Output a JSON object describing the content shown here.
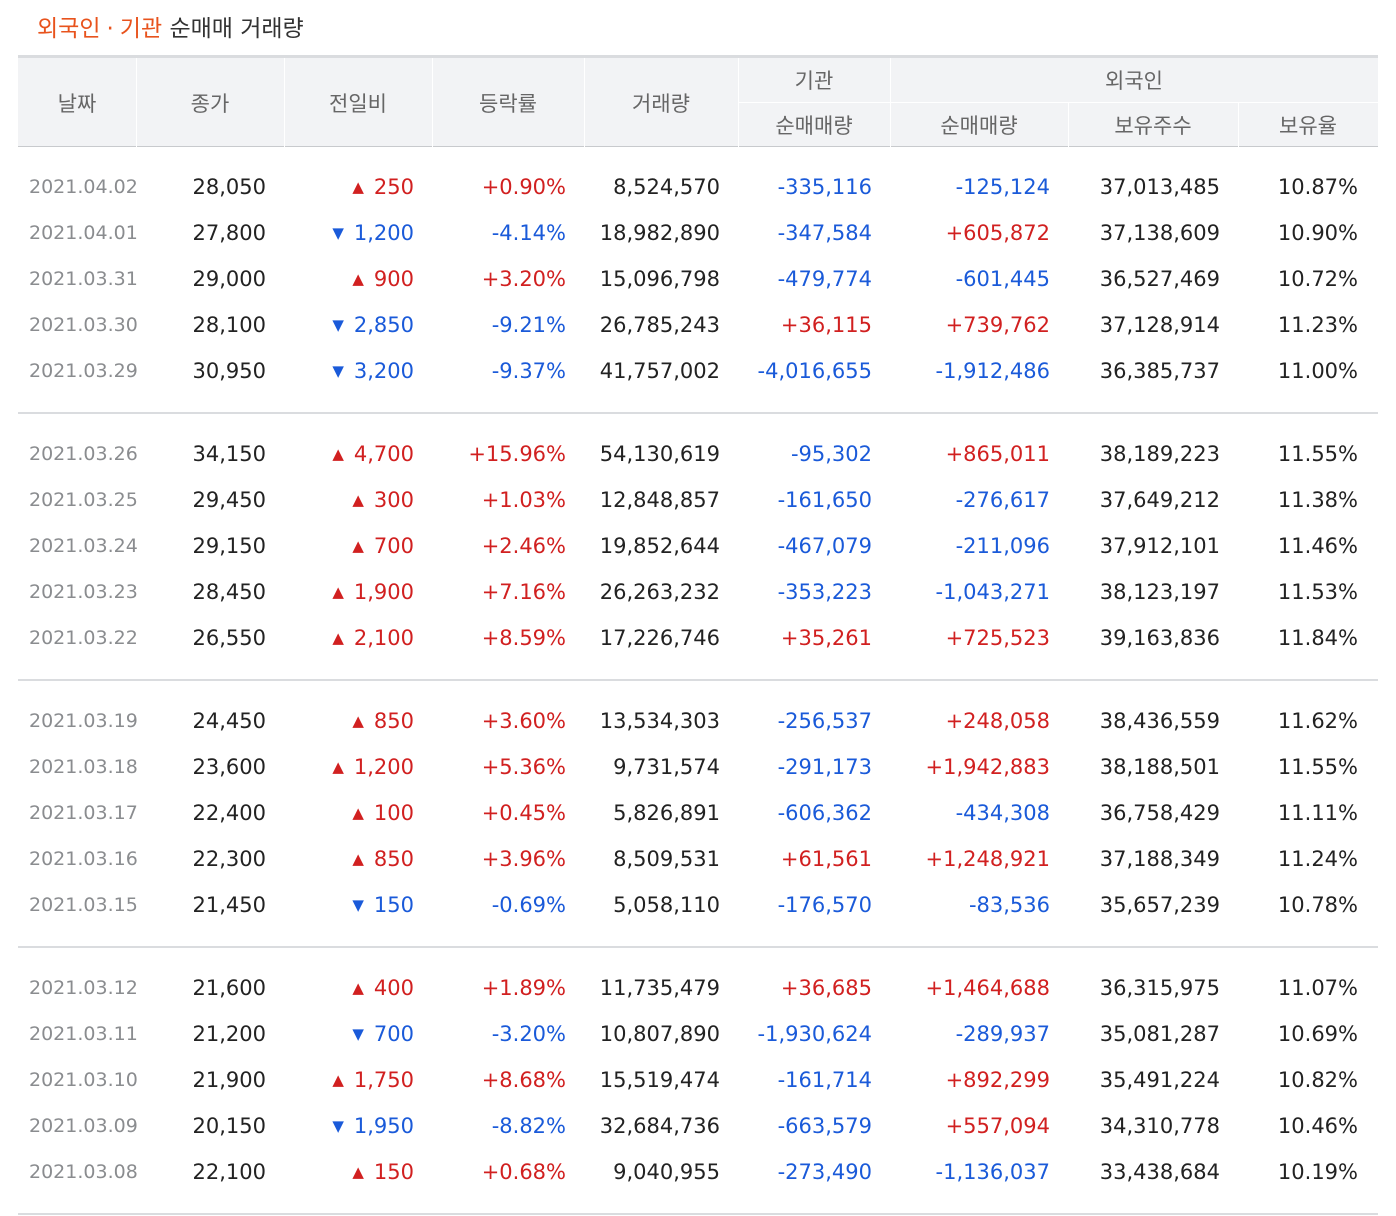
{
  "title": {
    "part1": "외국인",
    "separator": "·",
    "part2": "기관",
    "suffix": "순매매 거래량"
  },
  "colors": {
    "up": "#d12020",
    "down": "#1a5ad9",
    "accent": "#e8531d"
  },
  "headers": {
    "date": "날짜",
    "close": "종가",
    "change": "전일비",
    "rate": "등락률",
    "volume": "거래량",
    "institution_group": "기관",
    "institution_net": "순매매량",
    "foreign_group": "외국인",
    "foreign_net": "순매매량",
    "foreign_holdings": "보유주수",
    "foreign_ratio": "보유율"
  },
  "groups": [
    {
      "rows": [
        {
          "date": "2021.04.02",
          "close": "28,050",
          "dir": "up",
          "change": "250",
          "rate": "+0.90%",
          "volume": "8,524,570",
          "inst": "-335,116",
          "foreign": "-125,124",
          "holdings": "37,013,485",
          "ratio": "10.87%"
        },
        {
          "date": "2021.04.01",
          "close": "27,800",
          "dir": "down",
          "change": "1,200",
          "rate": "-4.14%",
          "volume": "18,982,890",
          "inst": "-347,584",
          "foreign": "+605,872",
          "holdings": "37,138,609",
          "ratio": "10.90%"
        },
        {
          "date": "2021.03.31",
          "close": "29,000",
          "dir": "up",
          "change": "900",
          "rate": "+3.20%",
          "volume": "15,096,798",
          "inst": "-479,774",
          "foreign": "-601,445",
          "holdings": "36,527,469",
          "ratio": "10.72%"
        },
        {
          "date": "2021.03.30",
          "close": "28,100",
          "dir": "down",
          "change": "2,850",
          "rate": "-9.21%",
          "volume": "26,785,243",
          "inst": "+36,115",
          "foreign": "+739,762",
          "holdings": "37,128,914",
          "ratio": "11.23%"
        },
        {
          "date": "2021.03.29",
          "close": "30,950",
          "dir": "down",
          "change": "3,200",
          "rate": "-9.37%",
          "volume": "41,757,002",
          "inst": "-4,016,655",
          "foreign": "-1,912,486",
          "holdings": "36,385,737",
          "ratio": "11.00%"
        }
      ]
    },
    {
      "rows": [
        {
          "date": "2021.03.26",
          "close": "34,150",
          "dir": "up",
          "change": "4,700",
          "rate": "+15.96%",
          "volume": "54,130,619",
          "inst": "-95,302",
          "foreign": "+865,011",
          "holdings": "38,189,223",
          "ratio": "11.55%"
        },
        {
          "date": "2021.03.25",
          "close": "29,450",
          "dir": "up",
          "change": "300",
          "rate": "+1.03%",
          "volume": "12,848,857",
          "inst": "-161,650",
          "foreign": "-276,617",
          "holdings": "37,649,212",
          "ratio": "11.38%"
        },
        {
          "date": "2021.03.24",
          "close": "29,150",
          "dir": "up",
          "change": "700",
          "rate": "+2.46%",
          "volume": "19,852,644",
          "inst": "-467,079",
          "foreign": "-211,096",
          "holdings": "37,912,101",
          "ratio": "11.46%"
        },
        {
          "date": "2021.03.23",
          "close": "28,450",
          "dir": "up",
          "change": "1,900",
          "rate": "+7.16%",
          "volume": "26,263,232",
          "inst": "-353,223",
          "foreign": "-1,043,271",
          "holdings": "38,123,197",
          "ratio": "11.53%"
        },
        {
          "date": "2021.03.22",
          "close": "26,550",
          "dir": "up",
          "change": "2,100",
          "rate": "+8.59%",
          "volume": "17,226,746",
          "inst": "+35,261",
          "foreign": "+725,523",
          "holdings": "39,163,836",
          "ratio": "11.84%"
        }
      ]
    },
    {
      "rows": [
        {
          "date": "2021.03.19",
          "close": "24,450",
          "dir": "up",
          "change": "850",
          "rate": "+3.60%",
          "volume": "13,534,303",
          "inst": "-256,537",
          "foreign": "+248,058",
          "holdings": "38,436,559",
          "ratio": "11.62%"
        },
        {
          "date": "2021.03.18",
          "close": "23,600",
          "dir": "up",
          "change": "1,200",
          "rate": "+5.36%",
          "volume": "9,731,574",
          "inst": "-291,173",
          "foreign": "+1,942,883",
          "holdings": "38,188,501",
          "ratio": "11.55%"
        },
        {
          "date": "2021.03.17",
          "close": "22,400",
          "dir": "up",
          "change": "100",
          "rate": "+0.45%",
          "volume": "5,826,891",
          "inst": "-606,362",
          "foreign": "-434,308",
          "holdings": "36,758,429",
          "ratio": "11.11%"
        },
        {
          "date": "2021.03.16",
          "close": "22,300",
          "dir": "up",
          "change": "850",
          "rate": "+3.96%",
          "volume": "8,509,531",
          "inst": "+61,561",
          "foreign": "+1,248,921",
          "holdings": "37,188,349",
          "ratio": "11.24%"
        },
        {
          "date": "2021.03.15",
          "close": "21,450",
          "dir": "down",
          "change": "150",
          "rate": "-0.69%",
          "volume": "5,058,110",
          "inst": "-176,570",
          "foreign": "-83,536",
          "holdings": "35,657,239",
          "ratio": "10.78%"
        }
      ]
    },
    {
      "rows": [
        {
          "date": "2021.03.12",
          "close": "21,600",
          "dir": "up",
          "change": "400",
          "rate": "+1.89%",
          "volume": "11,735,479",
          "inst": "+36,685",
          "foreign": "+1,464,688",
          "holdings": "36,315,975",
          "ratio": "11.07%"
        },
        {
          "date": "2021.03.11",
          "close": "21,200",
          "dir": "down",
          "change": "700",
          "rate": "-3.20%",
          "volume": "10,807,890",
          "inst": "-1,930,624",
          "foreign": "-289,937",
          "holdings": "35,081,287",
          "ratio": "10.69%"
        },
        {
          "date": "2021.03.10",
          "close": "21,900",
          "dir": "up",
          "change": "1,750",
          "rate": "+8.68%",
          "volume": "15,519,474",
          "inst": "-161,714",
          "foreign": "+892,299",
          "holdings": "35,491,224",
          "ratio": "10.82%"
        },
        {
          "date": "2021.03.09",
          "close": "20,150",
          "dir": "down",
          "change": "1,950",
          "rate": "-8.82%",
          "volume": "32,684,736",
          "inst": "-663,579",
          "foreign": "+557,094",
          "holdings": "34,310,778",
          "ratio": "10.46%"
        },
        {
          "date": "2021.03.08",
          "close": "22,100",
          "dir": "up",
          "change": "150",
          "rate": "+0.68%",
          "volume": "9,040,955",
          "inst": "-273,490",
          "foreign": "-1,136,037",
          "holdings": "33,438,684",
          "ratio": "10.19%"
        }
      ]
    }
  ]
}
